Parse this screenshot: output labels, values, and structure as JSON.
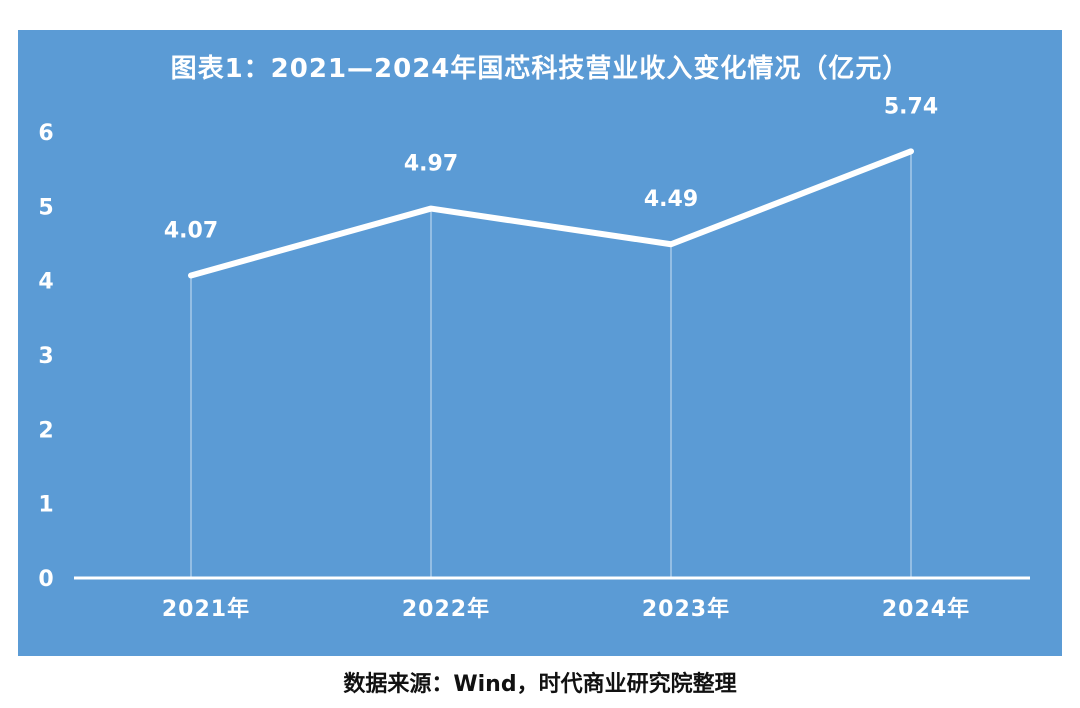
{
  "chart_data": {
    "type": "line",
    "title": "图表1：2021—2024年国芯科技营业收入变化情况（亿元）",
    "categories": [
      "2021年",
      "2022年",
      "2023年",
      "2024年"
    ],
    "series": [
      {
        "values": [
          4.07,
          4.97,
          4.49,
          5.74
        ]
      }
    ],
    "data_labels": [
      "4.07",
      "4.97",
      "4.49",
      "5.74"
    ],
    "yticks": [
      "0",
      "1",
      "2",
      "3",
      "4",
      "5",
      "6"
    ],
    "ylim": [
      0,
      6
    ],
    "xlabel": "",
    "ylabel": "",
    "grid": false,
    "legend": "none",
    "colors": {
      "background": "#5b9bd5",
      "line": "#ffffff",
      "text": "#ffffff"
    }
  },
  "source": "数据来源：Wind，时代商业研究院整理"
}
